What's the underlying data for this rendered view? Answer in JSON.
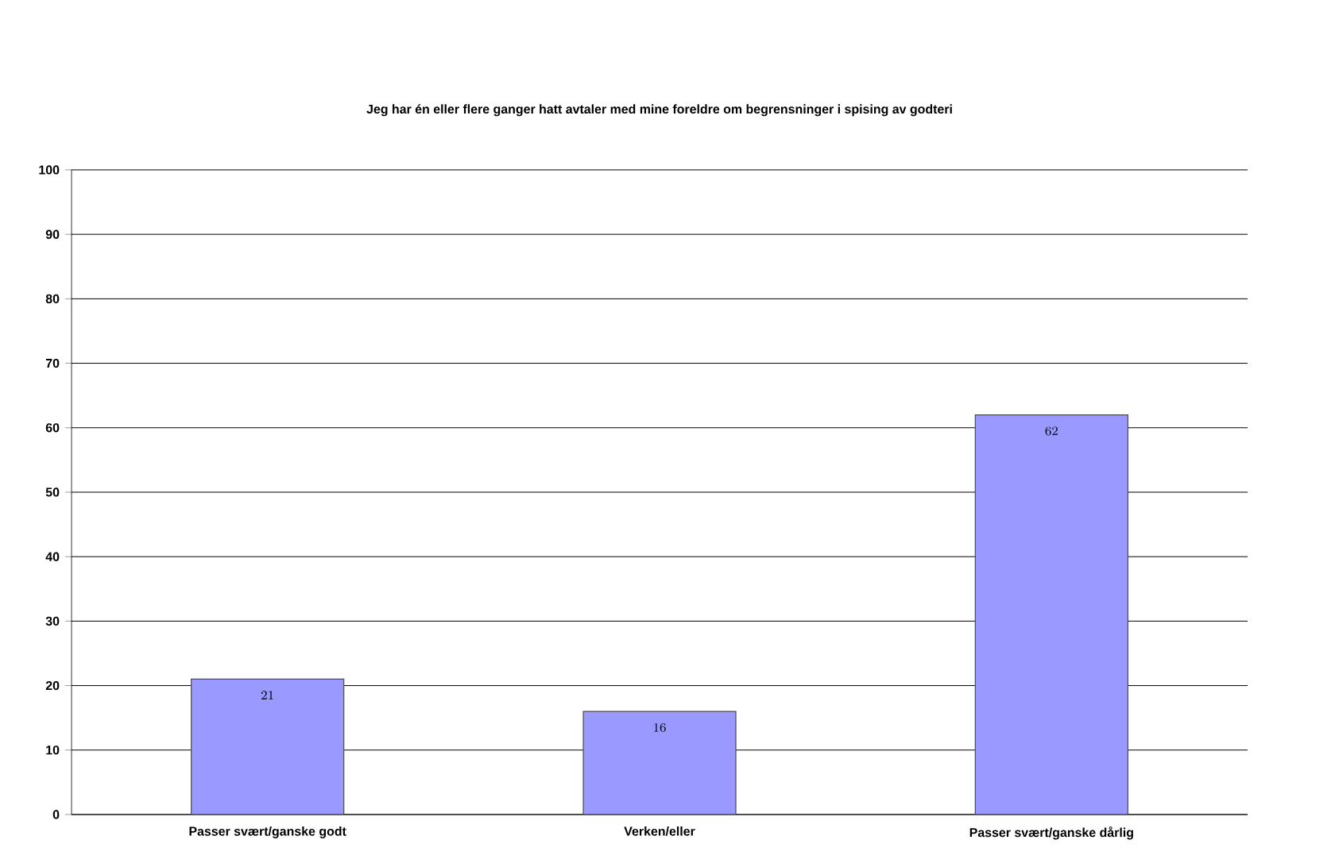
{
  "chart_data": {
    "type": "bar",
    "title": "Jeg har én eller flere ganger hatt avtaler med mine foreldre om begrensninger i spising av godteri",
    "categories": [
      "Passer svært/ganske godt",
      "Verken/eller",
      "Passer svært/ganske dårlig"
    ],
    "values": [
      21,
      16,
      62
    ],
    "color": "#9999ff",
    "ylim": [
      0,
      100
    ],
    "yticks": [
      0,
      10,
      20,
      30,
      40,
      50,
      60,
      70,
      80,
      90,
      100
    ],
    "grid": "y",
    "data_labels": true
  }
}
